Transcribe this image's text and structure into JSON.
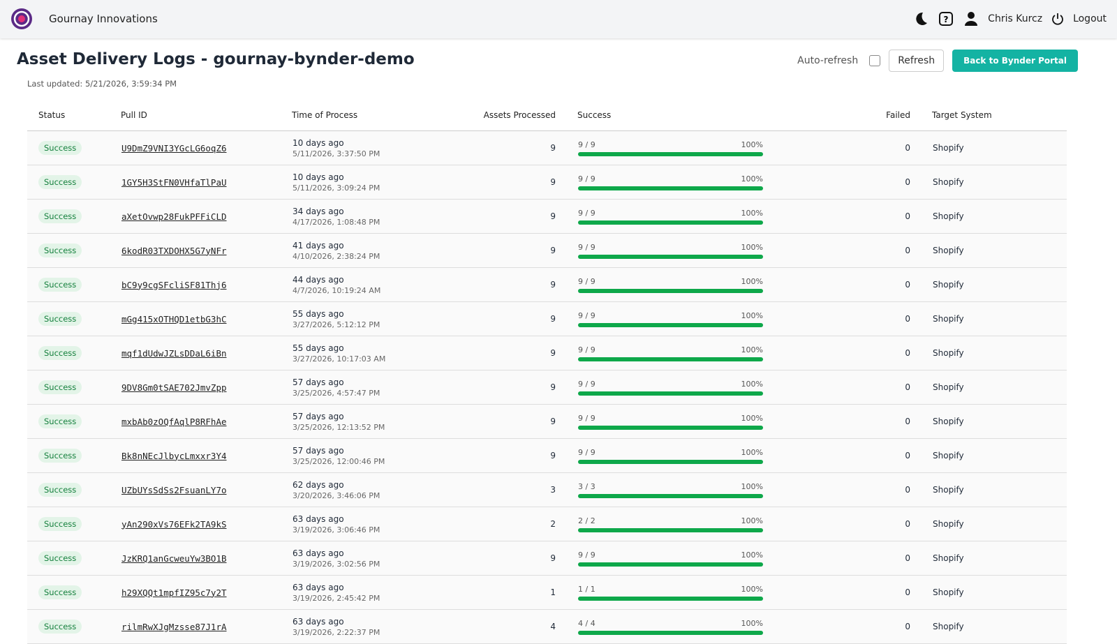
{
  "header": {
    "brand": "Gournay Innovations",
    "user": "Chris Kurcz",
    "logout": "Logout"
  },
  "page": {
    "title": "Asset Delivery Logs - gournay-bynder-demo",
    "last_updated": "Last updated: 5/21/2026, 3:59:34 PM",
    "auto_refresh": "Auto-refresh",
    "refresh": "Refresh",
    "back": "Back to Bynder Portal"
  },
  "table": {
    "columns": [
      "Status",
      "Pull ID",
      "Time of Process",
      "Assets Processed",
      "Success",
      "Failed",
      "Target System"
    ],
    "rows": [
      {
        "status": "Success",
        "pull_id": "U9DmZ9VNI3YGcLG6oqZ6",
        "ago": "10 days ago",
        "time": "5/11/2026, 3:37:50 PM",
        "assets": 9,
        "success": "9 / 9",
        "percent": {
          "value": 100,
          "label": "100%"
        },
        "failed": 0,
        "target": "Shopify"
      },
      {
        "status": "Success",
        "pull_id": "1GY5H3StFN0VHfaTlPaU",
        "ago": "10 days ago",
        "time": "5/11/2026, 3:09:24 PM",
        "assets": 9,
        "success": "9 / 9",
        "percent": {
          "value": 100,
          "label": "100%"
        },
        "failed": 0,
        "target": "Shopify"
      },
      {
        "status": "Success",
        "pull_id": "aXetOvwp28FukPFFiCLD",
        "ago": "34 days ago",
        "time": "4/17/2026, 1:08:48 PM",
        "assets": 9,
        "success": "9 / 9",
        "percent": {
          "value": 100,
          "label": "100%"
        },
        "failed": 0,
        "target": "Shopify"
      },
      {
        "status": "Success",
        "pull_id": "6kodR03TXDOHX5G7yNFr",
        "ago": "41 days ago",
        "time": "4/10/2026, 2:38:24 PM",
        "assets": 9,
        "success": "9 / 9",
        "percent": {
          "value": 100,
          "label": "100%"
        },
        "failed": 0,
        "target": "Shopify"
      },
      {
        "status": "Success",
        "pull_id": "bC9y9cgSFcliSF81Thj6",
        "ago": "44 days ago",
        "time": "4/7/2026, 10:19:24 AM",
        "assets": 9,
        "success": "9 / 9",
        "percent": {
          "value": 100,
          "label": "100%"
        },
        "failed": 0,
        "target": "Shopify"
      },
      {
        "status": "Success",
        "pull_id": "mGg415xOTHQD1etbG3hC",
        "ago": "55 days ago",
        "time": "3/27/2026, 5:12:12 PM",
        "assets": 9,
        "success": "9 / 9",
        "percent": {
          "value": 100,
          "label": "100%"
        },
        "failed": 0,
        "target": "Shopify"
      },
      {
        "status": "Success",
        "pull_id": "mqf1dUdwJZLsDDaL6iBn",
        "ago": "55 days ago",
        "time": "3/27/2026, 10:17:03 AM",
        "assets": 9,
        "success": "9 / 9",
        "percent": {
          "value": 100,
          "label": "100%"
        },
        "failed": 0,
        "target": "Shopify"
      },
      {
        "status": "Success",
        "pull_id": "9DV8Gm0tSAE702JmvZpp",
        "ago": "57 days ago",
        "time": "3/25/2026, 4:57:47 PM",
        "assets": 9,
        "success": "9 / 9",
        "percent": {
          "value": 100,
          "label": "100%"
        },
        "failed": 0,
        "target": "Shopify"
      },
      {
        "status": "Success",
        "pull_id": "mxbAb0zOQfAqlP8RFhAe",
        "ago": "57 days ago",
        "time": "3/25/2026, 12:13:52 PM",
        "assets": 9,
        "success": "9 / 9",
        "percent": {
          "value": 100,
          "label": "100%"
        },
        "failed": 0,
        "target": "Shopify"
      },
      {
        "status": "Success",
        "pull_id": "Bk8nNEcJlbycLmxxr3Y4",
        "ago": "57 days ago",
        "time": "3/25/2026, 12:00:46 PM",
        "assets": 9,
        "success": "9 / 9",
        "percent": {
          "value": 100,
          "label": "100%"
        },
        "failed": 0,
        "target": "Shopify"
      },
      {
        "status": "Success",
        "pull_id": "UZbUYsSdSs2FsuanLY7o",
        "ago": "62 days ago",
        "time": "3/20/2026, 3:46:06 PM",
        "assets": 3,
        "success": "3 / 3",
        "percent": {
          "value": 100,
          "label": "100%"
        },
        "failed": 0,
        "target": "Shopify"
      },
      {
        "status": "Success",
        "pull_id": "yAn290xVs76EFk2TA9kS",
        "ago": "63 days ago",
        "time": "3/19/2026, 3:06:46 PM",
        "assets": 2,
        "success": "2 / 2",
        "percent": {
          "value": 100,
          "label": "100%"
        },
        "failed": 0,
        "target": "Shopify"
      },
      {
        "status": "Success",
        "pull_id": "JzKRQ1anGcweuYw3BO1B",
        "ago": "63 days ago",
        "time": "3/19/2026, 3:02:56 PM",
        "assets": 9,
        "success": "9 / 9",
        "percent": {
          "value": 100,
          "label": "100%"
        },
        "failed": 0,
        "target": "Shopify"
      },
      {
        "status": "Success",
        "pull_id": "h29XQQt1mpfIZ95c7y2T",
        "ago": "63 days ago",
        "time": "3/19/2026, 2:45:42 PM",
        "assets": 1,
        "success": "1 / 1",
        "percent": {
          "value": 100,
          "label": "100%"
        },
        "failed": 0,
        "target": "Shopify"
      },
      {
        "status": "Success",
        "pull_id": "rilmRwXJgMzsse87J1rA",
        "ago": "63 days ago",
        "time": "3/19/2026, 2:22:37 PM",
        "assets": 4,
        "success": "4 / 4",
        "percent": {
          "value": 100,
          "label": "100%"
        },
        "failed": 0,
        "target": "Shopify"
      }
    ]
  }
}
